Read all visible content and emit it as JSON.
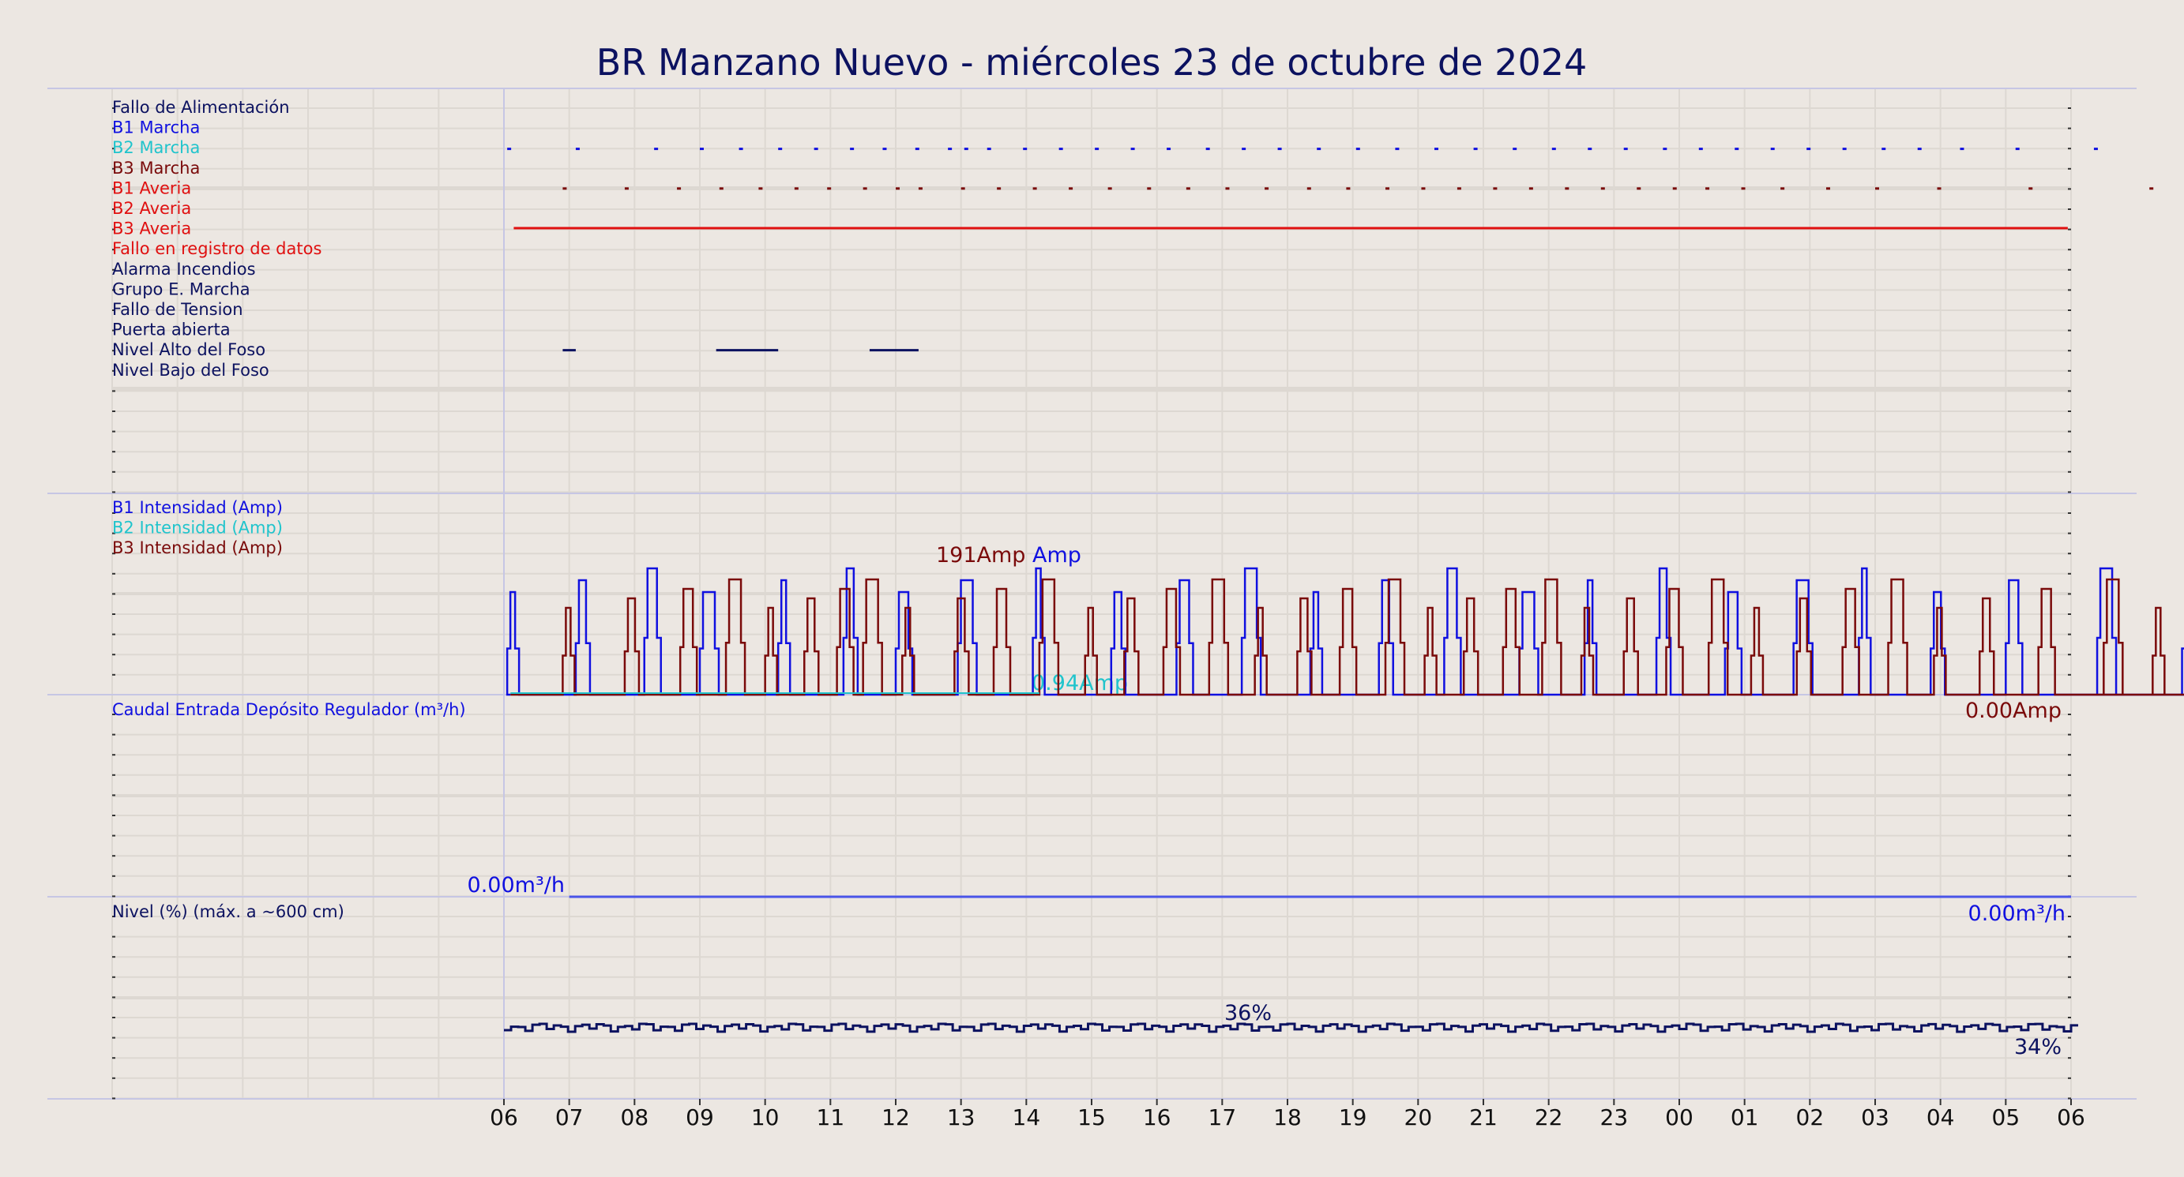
{
  "title": "BR Manzano Nuevo   -   miércoles 23 de octubre de 2024",
  "colors": {
    "background": "#ece7e2",
    "b1": "#1010e0",
    "b2": "#20c4cc",
    "b3": "#7a0a0a",
    "alarm": "#e01010",
    "dark": "#0c1260",
    "flow": "#4a55e8"
  },
  "chart_data": [
    {
      "type": "line",
      "panel": "signals",
      "signal_labels": [
        {
          "text": "Fallo de Alimentación",
          "color": "#0c1260"
        },
        {
          "text": "B1 Marcha",
          "color": "#1010e0"
        },
        {
          "text": "B2 Marcha",
          "color": "#20c4cc"
        },
        {
          "text": "B3 Marcha",
          "color": "#7a0a0a"
        },
        {
          "text": "B1 Averia",
          "color": "#e01010"
        },
        {
          "text": "B2 Averia",
          "color": "#e01010"
        },
        {
          "text": "B3 Averia",
          "color": "#e01010"
        },
        {
          "text": "Fallo en registro de datos",
          "color": "#e01010"
        },
        {
          "text": "Alarma Incendios",
          "color": "#0c1260"
        },
        {
          "text": "Grupo E. Marcha",
          "color": "#0c1260"
        },
        {
          "text": "Fallo de Tension",
          "color": "#0c1260"
        },
        {
          "text": "Puerta abierta",
          "color": "#0c1260"
        },
        {
          "text": "Nivel Alto del Foso",
          "color": "#0c1260"
        },
        {
          "text": "Nivel Bajo del Foso",
          "color": "#0c1260"
        }
      ],
      "b1_marcha_hours": [
        0.05,
        1.1,
        2.3,
        3.0,
        3.6,
        4.2,
        4.75,
        5.3,
        5.8,
        6.3,
        6.8,
        7.05,
        7.4,
        7.95,
        8.5,
        9.05,
        9.6,
        10.15,
        10.75,
        11.3,
        11.85,
        12.45,
        13.05,
        13.65,
        14.25,
        14.85,
        15.45,
        16.05,
        16.6,
        17.15,
        17.75,
        18.3,
        18.85,
        19.4,
        19.95,
        20.5,
        21.1,
        21.65,
        22.3,
        23.15,
        24.35,
        25.9
      ],
      "b3_marcha_hours": [
        0.9,
        1.85,
        2.65,
        3.3,
        3.9,
        4.45,
        4.95,
        5.5,
        6.0,
        6.35,
        7.0,
        7.55,
        8.1,
        8.65,
        9.25,
        9.85,
        10.45,
        11.05,
        11.65,
        12.3,
        12.9,
        13.5,
        14.05,
        14.6,
        15.15,
        15.7,
        16.25,
        16.8,
        17.35,
        17.9,
        18.4,
        18.95,
        19.55,
        20.25,
        21.0,
        21.95,
        23.35,
        25.2
      ],
      "b2_averia_hours": [
        0.15,
        23.95
      ],
      "puerta_abierta_hours": [
        [
          0.9,
          1.1
        ],
        [
          3.25,
          4.2
        ],
        [
          5.6,
          6.35
        ]
      ]
    },
    {
      "type": "line",
      "panel": "intensity",
      "series": [
        {
          "name": "B1 Intensidad (Amp)",
          "color": "#1010e0",
          "peak_label": "Amp"
        },
        {
          "name": "B2 Intensidad (Amp)",
          "color": "#20c4cc",
          "peak_label": "0.94Amp"
        },
        {
          "name": "B3 Intensidad (Amp)",
          "color": "#7a0a0a",
          "peak_label": "191Amp",
          "last_label": "0.00Amp"
        }
      ],
      "b1_peak_hours": [
        0.05,
        1.1,
        2.15,
        3.0,
        4.2,
        5.2,
        6.0,
        6.95,
        8.1,
        9.3,
        10.3,
        11.3,
        12.35,
        13.4,
        14.4,
        15.55,
        16.55,
        17.65,
        18.7,
        19.75,
        20.75,
        21.85,
        23.0,
        24.4,
        25.7
      ],
      "b3_peak_hours": [
        0.9,
        1.85,
        2.7,
        3.4,
        4.0,
        4.6,
        5.1,
        5.5,
        6.1,
        6.9,
        7.5,
        8.2,
        8.9,
        9.5,
        10.1,
        10.8,
        11.5,
        12.15,
        12.8,
        13.5,
        14.1,
        14.7,
        15.3,
        15.9,
        16.5,
        17.15,
        17.8,
        18.45,
        19.1,
        19.8,
        20.5,
        21.2,
        21.9,
        22.6,
        23.5,
        24.5,
        25.25,
        26.4,
        27.1,
        28.9
      ]
    },
    {
      "type": "line",
      "panel": "flow",
      "series": [
        {
          "name": "Caudal Entrada Depósito Regulador (m³/h)",
          "color": "#4a55e8",
          "first_label": "0.00m³/h",
          "last_label": "0.00m³/h",
          "values": [
            0.0
          ]
        }
      ]
    },
    {
      "type": "line",
      "panel": "level",
      "series": [
        {
          "name": "Nivel (%) (máx. a ~600 cm)",
          "color": "#0c1260",
          "max_label": "36%",
          "last_label": "34%"
        }
      ],
      "level_min_pct": 34,
      "level_max_pct": 36
    }
  ],
  "x_tick_labels": [
    "06",
    "07",
    "08",
    "09",
    "10",
    "11",
    "12",
    "13",
    "14",
    "15",
    "16",
    "17",
    "18",
    "19",
    "20",
    "21",
    "22",
    "23",
    "00",
    "01",
    "02",
    "03",
    "04",
    "05",
    "06"
  ]
}
